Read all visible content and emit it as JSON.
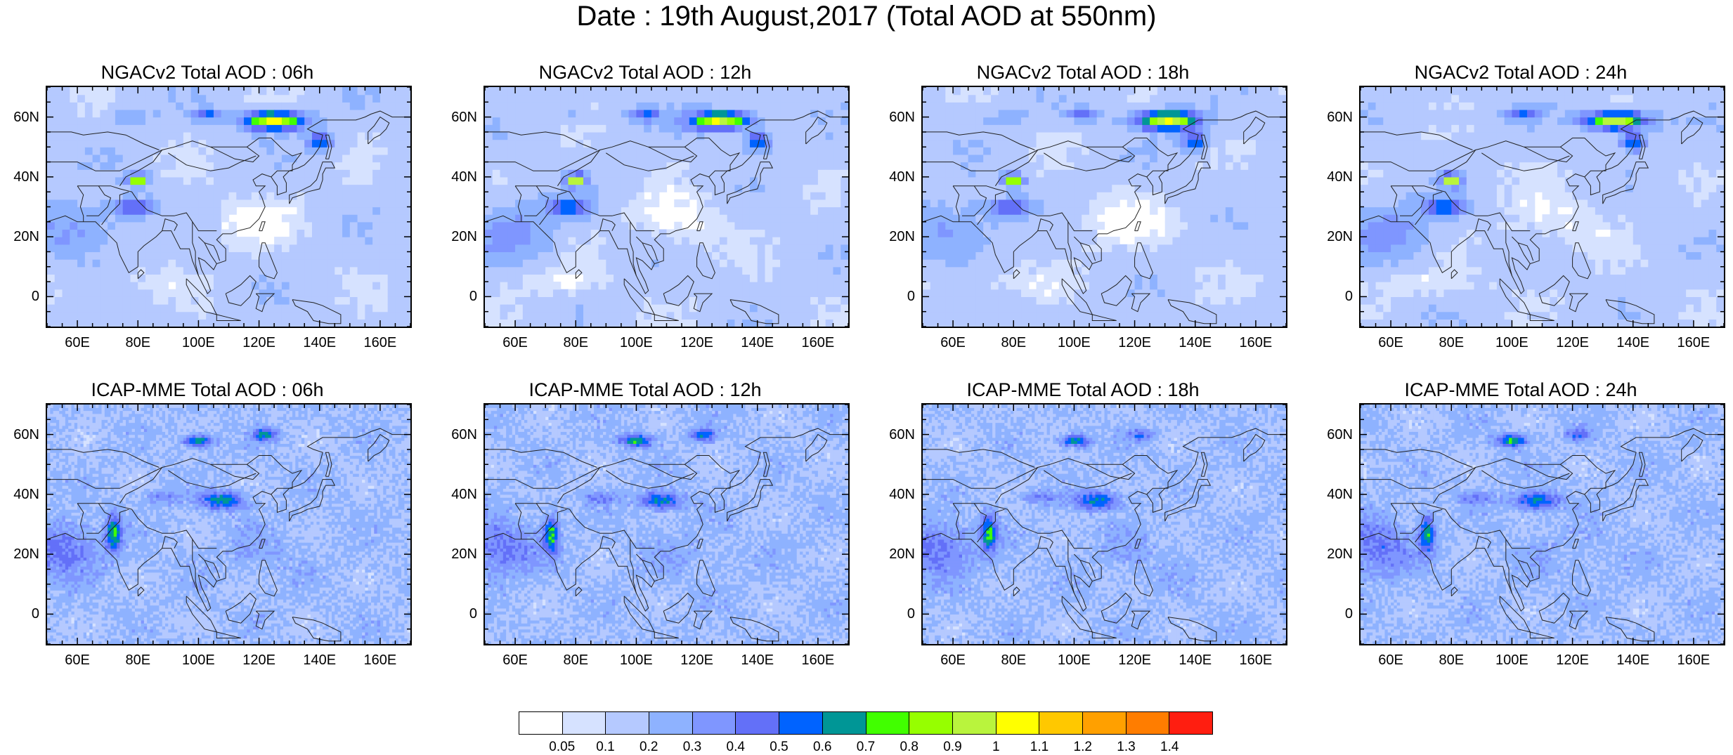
{
  "figure": {
    "title": "Date : 19th August,2017 (Total AOD at 550nm)"
  },
  "axes": {
    "lat_ticks": [
      "60N",
      "40N",
      "20N",
      "0"
    ],
    "lon_ticks": [
      "60E",
      "80E",
      "100E",
      "120E",
      "140E",
      "160E"
    ]
  },
  "panels": [
    {
      "title": "NGACv2 Total AOD : 06h",
      "model": "ngac",
      "hour": "06h"
    },
    {
      "title": "NGACv2 Total AOD : 12h",
      "model": "ngac",
      "hour": "12h"
    },
    {
      "title": "NGACv2 Total AOD : 18h",
      "model": "ngac",
      "hour": "18h"
    },
    {
      "title": "NGACv2 Total AOD : 24h",
      "model": "ngac",
      "hour": "24h"
    },
    {
      "title": "ICAP-MME Total AOD : 06h",
      "model": "icap",
      "hour": "06h"
    },
    {
      "title": "ICAP-MME Total AOD : 12h",
      "model": "icap",
      "hour": "12h"
    },
    {
      "title": "ICAP-MME Total AOD : 18h",
      "model": "icap",
      "hour": "18h"
    },
    {
      "title": "ICAP-MME Total AOD : 24h",
      "model": "icap",
      "hour": "24h"
    }
  ],
  "colorbar": {
    "labels": [
      "0.05",
      "0.1",
      "0.2",
      "0.3",
      "0.4",
      "0.5",
      "0.6",
      "0.7",
      "0.8",
      "0.9",
      "1",
      "1.1",
      "1.2",
      "1.3",
      "1.4"
    ],
    "colors": [
      "#ffffff",
      "#d6e2ff",
      "#b5c9ff",
      "#8eb2ff",
      "#7f96ff",
      "#6370f8",
      "#0063ff",
      "#009696",
      "#41ff00",
      "#96ff00",
      "#b9f43d",
      "#ffff00",
      "#ffc800",
      "#ffa000",
      "#ff7d00",
      "#ff1e10"
    ]
  }
}
